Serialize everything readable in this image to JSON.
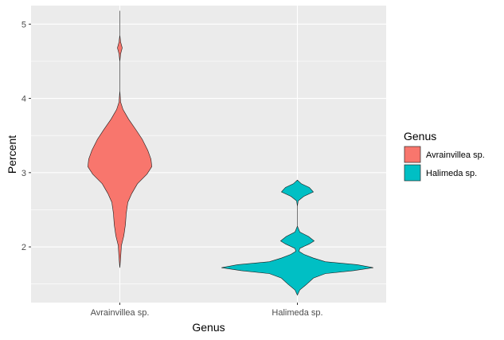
{
  "chart_data": {
    "type": "violin",
    "xlabel": "Genus",
    "ylabel": "Percent",
    "categories": [
      "Avrainvillea sp.",
      "Halimeda sp."
    ],
    "ylim": [
      1.25,
      5.25
    ],
    "yticks": [
      2,
      3,
      4,
      5
    ],
    "grid": true,
    "legend": {
      "title": "Genus",
      "position": "right",
      "entries": [
        {
          "label": "Avrainvillea sp.",
          "color": "#F8766D"
        },
        {
          "label": "Halimeda sp.",
          "color": "#00BFC4"
        }
      ]
    },
    "series": [
      {
        "category": "Avrainvillea sp.",
        "color": "#F8766D",
        "min": 1.72,
        "max": 5.18,
        "density_profile": [
          [
            1.72,
            0.0
          ],
          [
            1.85,
            0.01
          ],
          [
            2.02,
            0.02
          ],
          [
            2.15,
            0.05
          ],
          [
            2.3,
            0.07
          ],
          [
            2.45,
            0.08
          ],
          [
            2.6,
            0.1
          ],
          [
            2.72,
            0.15
          ],
          [
            2.85,
            0.22
          ],
          [
            2.98,
            0.34
          ],
          [
            3.08,
            0.4
          ],
          [
            3.18,
            0.39
          ],
          [
            3.3,
            0.35
          ],
          [
            3.45,
            0.28
          ],
          [
            3.58,
            0.2
          ],
          [
            3.72,
            0.11
          ],
          [
            3.85,
            0.04
          ],
          [
            3.95,
            0.01
          ],
          [
            4.1,
            0.0
          ],
          [
            4.3,
            0.0
          ],
          [
            4.5,
            0.0
          ],
          [
            4.6,
            0.01
          ],
          [
            4.68,
            0.03
          ],
          [
            4.76,
            0.01
          ],
          [
            4.85,
            0.0
          ],
          [
            5.0,
            0.0
          ],
          [
            5.18,
            0.0
          ]
        ]
      },
      {
        "category": "Halimeda sp.",
        "color": "#00BFC4",
        "min": 1.35,
        "max": 2.9,
        "density_profile": [
          [
            1.35,
            0.0
          ],
          [
            1.42,
            0.03
          ],
          [
            1.5,
            0.12
          ],
          [
            1.58,
            0.2
          ],
          [
            1.64,
            0.35
          ],
          [
            1.68,
            0.7
          ],
          [
            1.72,
            0.95
          ],
          [
            1.76,
            0.75
          ],
          [
            1.8,
            0.35
          ],
          [
            1.85,
            0.2
          ],
          [
            1.9,
            0.08
          ],
          [
            1.94,
            0.02
          ],
          [
            1.98,
            0.03
          ],
          [
            2.04,
            0.15
          ],
          [
            2.08,
            0.21
          ],
          [
            2.14,
            0.14
          ],
          [
            2.2,
            0.03
          ],
          [
            2.28,
            0.0
          ],
          [
            2.4,
            0.0
          ],
          [
            2.55,
            0.0
          ],
          [
            2.62,
            0.01
          ],
          [
            2.68,
            0.08
          ],
          [
            2.74,
            0.2
          ],
          [
            2.8,
            0.15
          ],
          [
            2.85,
            0.05
          ],
          [
            2.9,
            0.0
          ]
        ]
      }
    ]
  }
}
